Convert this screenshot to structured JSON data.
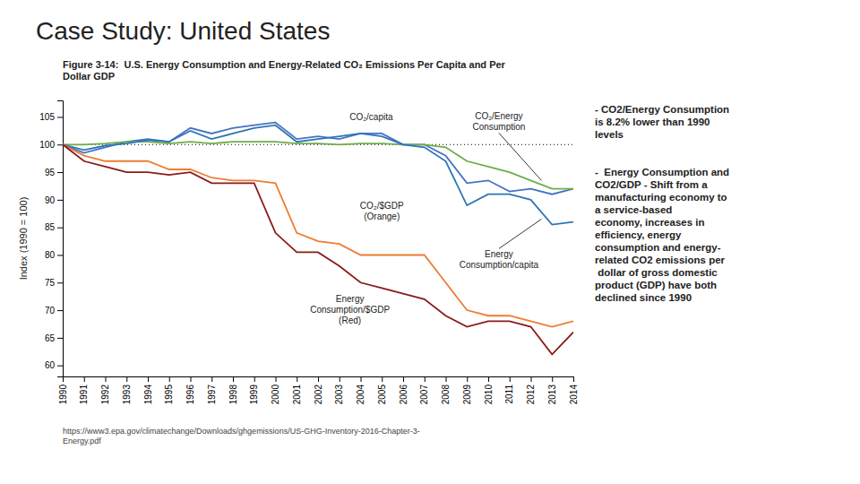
{
  "chart_data": {
    "type": "line",
    "title": "Case Study: United States",
    "subtitle": "Figure 3-14:  U.S. Energy Consumption and Energy-Related CO₂ Emissions Per Capita and Per\nDollar GDP",
    "y_label": "Index (1990 = 100)",
    "x": [
      1990,
      1991,
      1992,
      1993,
      1994,
      1995,
      1996,
      1997,
      1998,
      1999,
      2000,
      2001,
      2002,
      2003,
      2004,
      2005,
      2006,
      2007,
      2008,
      2009,
      2010,
      2011,
      2012,
      2013,
      2014
    ],
    "series": [
      {
        "color": "#4472C4",
        "values": [
          100,
          98.5,
          99.5,
          100.5,
          101,
          100.5,
          103,
          102,
          103,
          103.5,
          104,
          101,
          101.5,
          101,
          102,
          102,
          100,
          100,
          98,
          93,
          93.5,
          91.5,
          92,
          91,
          92
        ]
      },
      {
        "color": "#70AD47",
        "values": [
          100,
          100,
          100.2,
          100.5,
          100.5,
          100.2,
          100.5,
          100.2,
          100.5,
          100.5,
          100.5,
          100.2,
          100.2,
          100,
          100.2,
          100.2,
          100,
          100,
          99.5,
          97,
          96,
          95,
          93.5,
          92,
          92
        ]
      },
      {
        "color": "#2E75B6",
        "values": [
          100,
          99,
          99.8,
          100.2,
          100.8,
          100.5,
          102.5,
          101,
          102,
          103,
          103.5,
          100.5,
          101,
          101.5,
          102,
          101.5,
          100,
          99.5,
          97,
          89,
          91,
          91,
          90,
          85.5,
          86
        ]
      },
      {
        "color": "#ED7D31",
        "values": [
          100,
          98,
          97,
          97,
          97,
          95.5,
          95.5,
          94,
          93.5,
          93.5,
          93,
          84,
          82.5,
          82,
          80,
          80,
          80,
          80,
          75,
          70,
          69,
          69,
          68,
          67,
          68
        ]
      },
      {
        "color": "#8B1A1A",
        "values": [
          100,
          97,
          96,
          95,
          95,
          94.5,
          95,
          93,
          93,
          93,
          84,
          80.5,
          80.5,
          78,
          75,
          74,
          73,
          72,
          69,
          67,
          68,
          68,
          67,
          62,
          66
        ]
      }
    ],
    "reference_line": 100,
    "xlim": [
      1990,
      2014
    ],
    "xticks": [
      1990,
      1991,
      1992,
      1993,
      1994,
      1995,
      1996,
      1997,
      1998,
      1999,
      2000,
      2001,
      2002,
      2003,
      2004,
      2005,
      2006,
      2007,
      2008,
      2009,
      2010,
      2011,
      2012,
      2013,
      2014
    ],
    "ylim": [
      58,
      108
    ],
    "yticks": [
      60,
      65,
      70,
      75,
      80,
      85,
      90,
      95,
      100,
      105
    ],
    "grid": false,
    "annotations": [
      "CO₂/capita",
      "CO₂/Energy\nConsumption",
      "Energy\nConsumption/capita",
      "CO₂/$GDP\n(Orange)",
      "Energy\nConsumption/$GDP\n(Red)",
      "- CO2/Energy Consumption\nis 8.2% lower than 1990\nlevels",
      "-  Energy Consumption and\nCO2/GDP - Shift from a\nmanufacturing economy to\na service-based\neconomy, increases in\nefficiency, energy\nconsumption and energy-\nrelated CO2 emissions per\n dollar of gross domestic\nproduct (GDP) have both\ndeclined since 1990",
      "https://www3.epa.gov/climatechange/Downloads/ghgemissions/US-GHG-Inventory-2016-Chapter-3-\nEnergy.pdf"
    ]
  }
}
